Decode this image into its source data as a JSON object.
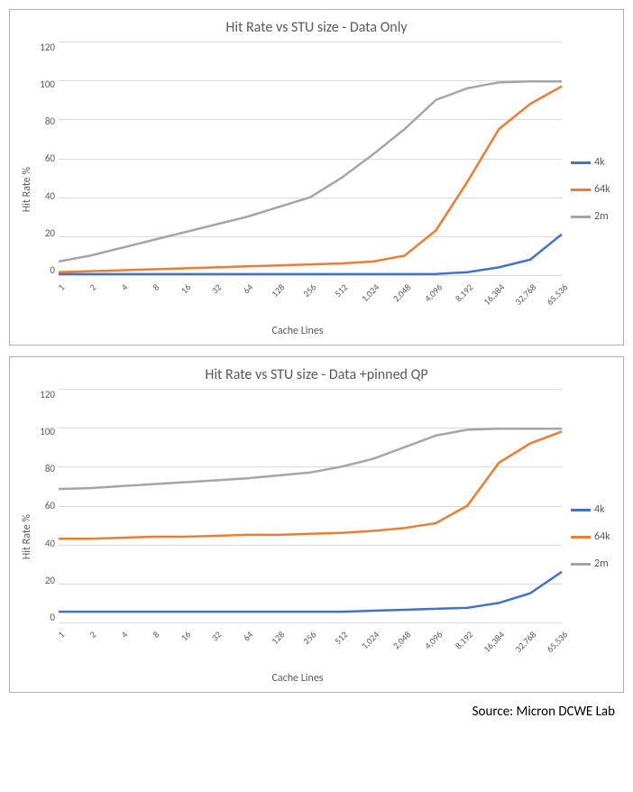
{
  "source_line": "Source: Micron DCWE Lab",
  "colors": {
    "series_4k": "#4472c4",
    "series_64k": "#ed7d31",
    "series_2m": "#a5a5a5",
    "grid": "#d9d9d9",
    "text": "#595959",
    "background": "#ffffff"
  },
  "line_width": 2.5,
  "charts": [
    {
      "title": "Hit Rate vs STU size - Data Only",
      "y_label": "Hit Rate %",
      "x_label": "Cache Lines",
      "y_min": 0,
      "y_max": 120,
      "y_tick_step": 20,
      "y_ticks": [
        "120",
        "100",
        "80",
        "60",
        "40",
        "20",
        "0"
      ],
      "x_categories": [
        "1",
        "2",
        "4",
        "8",
        "16",
        "32",
        "64",
        "128",
        "256",
        "512",
        "1,024",
        "2,048",
        "4,096",
        "8,192",
        "16,384",
        "32,768",
        "65,536"
      ],
      "series": [
        {
          "name": "4k",
          "color": "#4472c4",
          "values": [
            0.5,
            0.5,
            0.5,
            0.5,
            0.5,
            0.5,
            0.5,
            0.5,
            0.5,
            0.5,
            0.5,
            0.5,
            0.6,
            1.5,
            4,
            8,
            21
          ]
        },
        {
          "name": "64k",
          "color": "#ed7d31",
          "values": [
            1.5,
            2,
            2.5,
            3,
            3.5,
            4,
            4.5,
            5,
            5.5,
            6,
            7,
            10,
            23,
            48,
            75,
            88,
            97
          ]
        },
        {
          "name": "2m",
          "color": "#a5a5a5",
          "values": [
            7,
            10,
            14,
            18,
            22,
            26,
            30,
            35,
            40,
            50,
            62,
            75,
            90,
            96,
            99,
            99.5,
            99.5
          ]
        }
      ]
    },
    {
      "title": "Hit Rate vs STU size - Data +pinned QP",
      "y_label": "Hit Rate %",
      "x_label": "Cache Lines",
      "y_min": 0,
      "y_max": 120,
      "y_tick_step": 20,
      "y_ticks": [
        "120",
        "100",
        "80",
        "60",
        "40",
        "20",
        "0"
      ],
      "x_categories": [
        "1",
        "2",
        "4",
        "8",
        "16",
        "32",
        "64",
        "128",
        "256",
        "512",
        "1,024",
        "2,048",
        "4,096",
        "8,192",
        "16,384",
        "32,768",
        "65,536"
      ],
      "series": [
        {
          "name": "4k",
          "color": "#4472c4",
          "values": [
            5.5,
            5.5,
            5.5,
            5.5,
            5.5,
            5.5,
            5.5,
            5.5,
            5.5,
            5.5,
            6,
            6.5,
            7,
            7.5,
            10,
            15,
            26
          ]
        },
        {
          "name": "64k",
          "color": "#ed7d31",
          "values": [
            43,
            43,
            43.5,
            44,
            44,
            44.5,
            45,
            45,
            45.5,
            46,
            47,
            48.5,
            51,
            60,
            82,
            92,
            98
          ]
        },
        {
          "name": "2m",
          "color": "#a5a5a5",
          "values": [
            68.5,
            69,
            70,
            71,
            72,
            73,
            74,
            75.5,
            77,
            80,
            84,
            90,
            96,
            99,
            99.5,
            99.5,
            99.5
          ]
        }
      ]
    }
  ],
  "legend_labels": {
    "s0": "4k",
    "s1": "64k",
    "s2": "2m"
  }
}
